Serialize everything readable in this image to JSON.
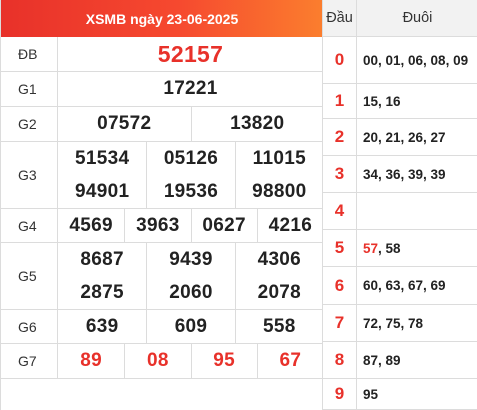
{
  "header": {
    "title": "XSMB ngày 23-06-2025"
  },
  "prizes": [
    {
      "label": "ĐB",
      "lines": [
        [
          "52157"
        ]
      ],
      "style": "special"
    },
    {
      "label": "G1",
      "lines": [
        [
          "17221"
        ]
      ]
    },
    {
      "label": "G2",
      "lines": [
        [
          "07572",
          "13820"
        ]
      ]
    },
    {
      "label": "G3",
      "lines": [
        [
          "51534",
          "05126",
          "11015"
        ],
        [
          "94901",
          "19536",
          "98800"
        ]
      ]
    },
    {
      "label": "G4",
      "lines": [
        [
          "4569",
          "3963",
          "0627",
          "4216"
        ]
      ]
    },
    {
      "label": "G5",
      "lines": [
        [
          "8687",
          "9439",
          "4306"
        ],
        [
          "2875",
          "2060",
          "2078"
        ]
      ]
    },
    {
      "label": "G6",
      "lines": [
        [
          "639",
          "609",
          "558"
        ]
      ]
    },
    {
      "label": "G7",
      "lines": [
        [
          "89",
          "08",
          "95",
          "67"
        ]
      ],
      "style": "red"
    }
  ],
  "loto": {
    "head_label": "Đầu",
    "tail_label": "Đuôi",
    "rows": [
      {
        "head": "0",
        "tail_red": "",
        "tail": "00, 01, 06, 08, 09"
      },
      {
        "head": "1",
        "tail_red": "",
        "tail": "15, 16"
      },
      {
        "head": "2",
        "tail_red": "",
        "tail": "20, 21, 26, 27"
      },
      {
        "head": "3",
        "tail_red": "",
        "tail": "34, 36, 39, 39"
      },
      {
        "head": "4",
        "tail_red": "",
        "tail": ""
      },
      {
        "head": "5",
        "tail_red": "57",
        "tail": ", 58"
      },
      {
        "head": "6",
        "tail_red": "",
        "tail": "60, 63, 67, 69"
      },
      {
        "head": "7",
        "tail_red": "",
        "tail": "72, 75, 78"
      },
      {
        "head": "8",
        "tail_red": "",
        "tail": "87, 89"
      },
      {
        "head": "9",
        "tail_red": "",
        "tail": "95"
      }
    ]
  },
  "colors": {
    "accent": "#e8312a",
    "header_gradient_end": "#fb7e2e",
    "border": "#dcdcdc",
    "head_bg": "#f2f2f2"
  }
}
